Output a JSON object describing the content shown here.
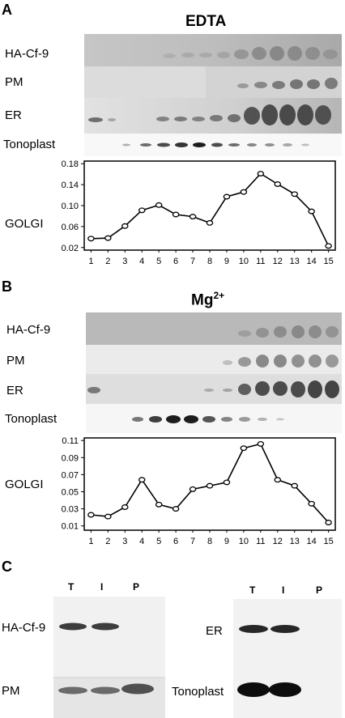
{
  "panelA": {
    "letter": "A",
    "title": "EDTA",
    "rows": [
      "HA-Cf-9",
      "PM",
      "ER",
      "Tonoplast"
    ],
    "golgi_label": "GOLGI"
  },
  "panelB": {
    "letter": "B",
    "title_main": "Mg",
    "title_sup": "2+",
    "rows": [
      "HA-Cf-9",
      "PM",
      "ER",
      "Tonoplast"
    ],
    "golgi_label": "GOLGI"
  },
  "panelC": {
    "letter": "C",
    "left": {
      "lanes": [
        "T",
        "I",
        "P"
      ],
      "rows": [
        "HA-Cf-9",
        "PM"
      ]
    },
    "right": {
      "lanes": [
        "T",
        "I",
        "P"
      ],
      "rows": [
        "ER",
        "Tonoplast"
      ]
    }
  },
  "chart_data": [
    {
      "type": "line",
      "x": [
        1,
        2,
        3,
        4,
        5,
        6,
        7,
        8,
        9,
        10,
        11,
        12,
        13,
        14,
        15
      ],
      "series": [
        {
          "values": [
            0.037,
            0.038,
            0.061,
            0.091,
            0.101,
            0.083,
            0.079,
            0.067,
            0.117,
            0.126,
            0.161,
            0.141,
            0.122,
            0.089,
            0.023
          ]
        }
      ],
      "yticks": [
        "0.02",
        "0.06",
        "0.10",
        "0.14",
        "0.18"
      ],
      "ylim": [
        0.015,
        0.185
      ],
      "xlim": [
        0.6,
        15.4
      ],
      "grid": false
    },
    {
      "type": "line",
      "x": [
        1,
        2,
        3,
        4,
        5,
        6,
        7,
        8,
        9,
        10,
        11,
        12,
        13,
        14,
        15
      ],
      "series": [
        {
          "values": [
            0.023,
            0.021,
            0.032,
            0.064,
            0.035,
            0.03,
            0.053,
            0.057,
            0.061,
            0.101,
            0.106,
            0.064,
            0.057,
            0.036,
            0.014
          ]
        }
      ],
      "yticks": [
        "0.01",
        "0.03",
        "0.05",
        "0.07",
        "0.09",
        "0.11"
      ],
      "ylim": [
        0.005,
        0.113
      ],
      "xlim": [
        0.6,
        15.4
      ],
      "grid": false
    }
  ]
}
